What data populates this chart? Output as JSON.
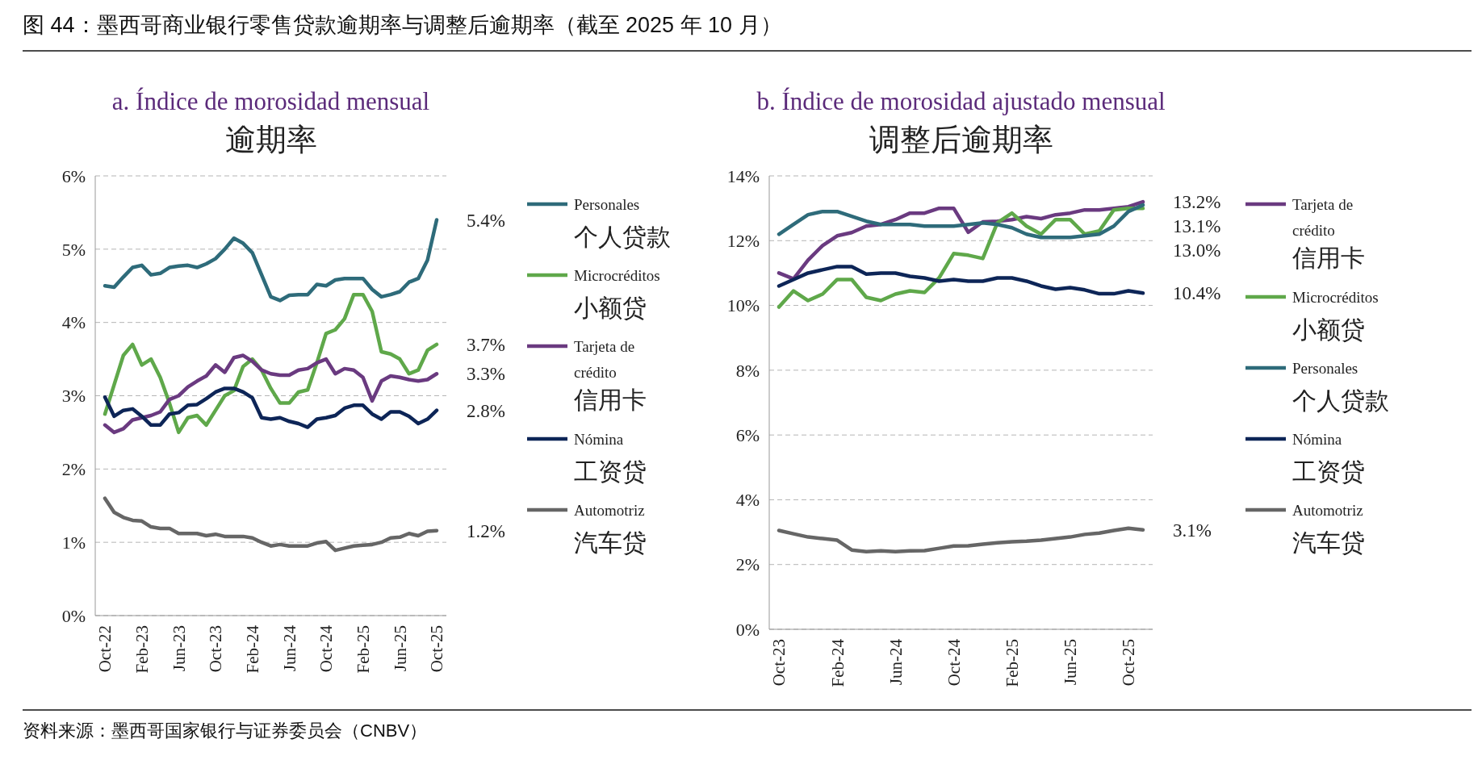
{
  "chart_data": [
    {
      "type": "line",
      "title": "a. Índice de morosidad mensual",
      "subtitle": "逾期率",
      "categories": [
        "Oct-22",
        null,
        null,
        null,
        "Feb-23",
        null,
        null,
        null,
        "Jun-23",
        null,
        null,
        null,
        "Oct-23",
        null,
        null,
        null,
        "Feb-24",
        null,
        null,
        null,
        "Jun-24",
        null,
        null,
        null,
        "Oct-24",
        null,
        null,
        null,
        "Feb-25",
        null,
        null,
        null,
        "Jun-25",
        null,
        null,
        null,
        "Oct-25"
      ],
      "series": [
        {
          "name": "Personales\n个人贷款",
          "color": "#2e6b7a",
          "values": [
            4.5,
            4.48,
            4.62,
            4.75,
            4.78,
            4.65,
            4.67,
            4.75,
            4.77,
            4.78,
            4.75,
            4.8,
            4.87,
            5.0,
            5.15,
            5.08,
            4.95,
            4.65,
            4.35,
            4.3,
            4.37,
            4.38,
            4.38,
            4.52,
            4.5,
            4.58,
            4.6,
            4.6,
            4.6,
            4.45,
            4.35,
            4.38,
            4.42,
            4.55,
            4.6,
            4.85,
            5.4
          ],
          "value_labels": [
            null,
            null,
            null,
            null,
            null,
            null,
            null,
            null,
            null,
            null,
            null,
            null,
            null,
            null,
            null,
            null,
            null,
            null,
            null,
            null,
            null,
            null,
            null,
            null,
            null,
            null,
            null,
            null,
            null,
            null,
            null,
            null,
            null,
            null,
            null,
            null,
            "5.4%"
          ]
        },
        {
          "name": "Microcréditos\n小额贷",
          "color": "#5fa84a",
          "values": [
            2.75,
            3.15,
            3.55,
            3.7,
            3.42,
            3.5,
            3.25,
            2.9,
            2.5,
            2.7,
            2.73,
            2.6,
            2.8,
            3.0,
            3.07,
            3.4,
            3.5,
            3.35,
            3.1,
            2.9,
            2.9,
            3.05,
            3.08,
            3.45,
            3.85,
            3.9,
            4.05,
            4.38,
            4.38,
            4.15,
            3.6,
            3.57,
            3.5,
            3.3,
            3.35,
            3.62,
            3.7
          ],
          "value_labels": [
            null,
            null,
            null,
            null,
            null,
            null,
            null,
            null,
            null,
            null,
            null,
            null,
            null,
            null,
            null,
            null,
            null,
            null,
            null,
            null,
            null,
            null,
            null,
            null,
            null,
            null,
            null,
            null,
            null,
            null,
            null,
            null,
            null,
            null,
            null,
            null,
            "3.7%"
          ]
        },
        {
          "name": "Tarjeta de\ncrédito\n信用卡",
          "color": "#6a3a80",
          "values": [
            2.6,
            2.5,
            2.55,
            2.67,
            2.7,
            2.73,
            2.78,
            2.95,
            3.0,
            3.12,
            3.2,
            3.27,
            3.42,
            3.32,
            3.52,
            3.55,
            3.47,
            3.35,
            3.3,
            3.28,
            3.28,
            3.35,
            3.37,
            3.45,
            3.5,
            3.3,
            3.37,
            3.35,
            3.25,
            2.93,
            3.2,
            3.27,
            3.25,
            3.22,
            3.2,
            3.22,
            3.3
          ],
          "value_labels": [
            null,
            null,
            null,
            null,
            null,
            null,
            null,
            null,
            null,
            null,
            null,
            null,
            null,
            null,
            null,
            null,
            null,
            null,
            null,
            null,
            null,
            null,
            null,
            null,
            null,
            null,
            null,
            null,
            null,
            null,
            null,
            null,
            null,
            null,
            null,
            null,
            "3.3%"
          ]
        },
        {
          "name": "Nómina\n工资贷",
          "color": "#0d2557",
          "values": [
            2.98,
            2.72,
            2.8,
            2.82,
            2.72,
            2.6,
            2.6,
            2.75,
            2.77,
            2.87,
            2.88,
            2.96,
            3.05,
            3.1,
            3.1,
            3.05,
            2.97,
            2.7,
            2.68,
            2.7,
            2.65,
            2.62,
            2.57,
            2.68,
            2.7,
            2.73,
            2.83,
            2.87,
            2.87,
            2.75,
            2.68,
            2.78,
            2.78,
            2.72,
            2.62,
            2.68,
            2.8
          ],
          "value_labels": [
            null,
            null,
            null,
            null,
            null,
            null,
            null,
            null,
            null,
            null,
            null,
            null,
            null,
            null,
            null,
            null,
            null,
            null,
            null,
            null,
            null,
            null,
            null,
            null,
            null,
            null,
            null,
            null,
            null,
            null,
            null,
            null,
            null,
            null,
            null,
            null,
            "2.8%"
          ]
        },
        {
          "name": "Automotriz\n汽车贷",
          "color": "#666666",
          "values": [
            1.6,
            1.41,
            1.34,
            1.3,
            1.29,
            1.21,
            1.19,
            1.19,
            1.12,
            1.12,
            1.12,
            1.09,
            1.11,
            1.08,
            1.08,
            1.08,
            1.06,
            1.0,
            0.95,
            0.97,
            0.95,
            0.95,
            0.95,
            0.99,
            1.01,
            0.89,
            0.92,
            0.95,
            0.96,
            0.97,
            1.0,
            1.06,
            1.07,
            1.12,
            1.09,
            1.15,
            1.16
          ],
          "value_labels": [
            null,
            null,
            null,
            null,
            null,
            null,
            null,
            null,
            null,
            null,
            null,
            null,
            null,
            null,
            null,
            null,
            null,
            null,
            null,
            null,
            null,
            null,
            null,
            null,
            null,
            null,
            null,
            null,
            null,
            null,
            null,
            null,
            null,
            null,
            null,
            null,
            "1.2%"
          ]
        }
      ],
      "ylim": [
        0,
        6
      ],
      "yticks": [
        {
          "value": 0,
          "label": "0%"
        },
        {
          "value": 1,
          "label": "1%"
        },
        {
          "value": 2,
          "label": "2%"
        },
        {
          "value": 3,
          "label": "3%"
        },
        {
          "value": 4,
          "label": "4%"
        },
        {
          "value": 5,
          "label": "5%"
        },
        {
          "value": 6,
          "label": "6%"
        }
      ],
      "grid": "y",
      "legend": "right",
      "line_style": "solid",
      "marker": "none",
      "annotations": [
        "图 44：墨西哥商业银行零售贷款逾期率与调整后逾期率（截至 2025 年 10 月）",
        "资料来源：墨西哥国家银行与证券委员会（CNBV）"
      ]
    },
    {
      "type": "line",
      "title": "b. Índice de morosidad ajustado mensual",
      "subtitle": "调整后逾期率",
      "categories": [
        "Oct-23",
        null,
        null,
        null,
        "Feb-24",
        null,
        null,
        null,
        "Jun-24",
        null,
        null,
        null,
        "Oct-24",
        null,
        null,
        null,
        "Feb-25",
        null,
        null,
        null,
        "Jun-25",
        null,
        null,
        null,
        "Oct-25",
        null
      ],
      "series": [
        {
          "name": "Tarjeta de\ncrédito\n信用卡",
          "color": "#6a3a80",
          "values": [
            11.0,
            10.82,
            11.4,
            11.85,
            12.15,
            12.25,
            12.45,
            12.5,
            12.65,
            12.85,
            12.85,
            13.0,
            13.0,
            12.26,
            12.58,
            12.6,
            12.65,
            12.74,
            12.68,
            12.8,
            12.85,
            12.95,
            12.95,
            13.0,
            13.05,
            13.2
          ],
          "value_labels": [
            null,
            null,
            null,
            null,
            null,
            null,
            null,
            null,
            null,
            null,
            null,
            null,
            null,
            null,
            null,
            null,
            null,
            null,
            null,
            null,
            null,
            null,
            null,
            null,
            null,
            "13.2%"
          ]
        },
        {
          "name": "Microcréditos\n小额贷",
          "color": "#5fa84a",
          "values": [
            9.95,
            10.45,
            10.15,
            10.35,
            10.8,
            10.8,
            10.25,
            10.15,
            10.35,
            10.45,
            10.4,
            10.85,
            11.6,
            11.55,
            11.45,
            12.55,
            12.85,
            12.45,
            12.2,
            12.65,
            12.65,
            12.2,
            12.3,
            12.95,
            13.0,
            13.0
          ],
          "value_labels": [
            null,
            null,
            null,
            null,
            null,
            null,
            null,
            null,
            null,
            null,
            null,
            null,
            null,
            null,
            null,
            null,
            null,
            null,
            null,
            null,
            null,
            null,
            null,
            null,
            null,
            "13.0%"
          ]
        },
        {
          "name": "Personales\n个人贷款",
          "color": "#2e6b7a",
          "values": [
            12.2,
            12.5,
            12.8,
            12.9,
            12.9,
            12.75,
            12.6,
            12.5,
            12.5,
            12.5,
            12.45,
            12.45,
            12.45,
            12.5,
            12.55,
            12.5,
            12.4,
            12.2,
            12.1,
            12.1,
            12.1,
            12.15,
            12.2,
            12.45,
            12.9,
            13.1
          ],
          "value_labels": [
            null,
            null,
            null,
            null,
            null,
            null,
            null,
            null,
            null,
            null,
            null,
            null,
            null,
            null,
            null,
            null,
            null,
            null,
            null,
            null,
            null,
            null,
            null,
            null,
            null,
            "13.1%"
          ]
        },
        {
          "name": "Nómina\n工资贷",
          "color": "#0d2557",
          "values": [
            10.6,
            10.8,
            11.0,
            11.1,
            11.2,
            11.2,
            10.97,
            11.0,
            11.0,
            10.9,
            10.85,
            10.75,
            10.8,
            10.75,
            10.75,
            10.85,
            10.85,
            10.75,
            10.6,
            10.5,
            10.55,
            10.48,
            10.36,
            10.36,
            10.45,
            10.38
          ],
          "value_labels": [
            null,
            null,
            null,
            null,
            null,
            null,
            null,
            null,
            null,
            null,
            null,
            null,
            null,
            null,
            null,
            null,
            null,
            null,
            null,
            null,
            null,
            null,
            null,
            null,
            null,
            "10.4%"
          ]
        },
        {
          "name": "Automotriz\n汽车贷",
          "color": "#666666",
          "values": [
            3.05,
            2.95,
            2.85,
            2.8,
            2.75,
            2.45,
            2.4,
            2.42,
            2.4,
            2.42,
            2.43,
            2.5,
            2.57,
            2.58,
            2.63,
            2.67,
            2.7,
            2.72,
            2.75,
            2.8,
            2.85,
            2.93,
            2.97,
            3.05,
            3.12,
            3.07
          ],
          "value_labels": [
            null,
            null,
            null,
            null,
            null,
            null,
            null,
            null,
            null,
            null,
            null,
            null,
            null,
            null,
            null,
            null,
            null,
            null,
            null,
            null,
            null,
            null,
            null,
            null,
            null,
            "3.1%"
          ]
        }
      ],
      "ylim": [
        0,
        14
      ],
      "yticks": [
        {
          "value": 0,
          "label": "0%"
        },
        {
          "value": 2,
          "label": "2%"
        },
        {
          "value": 4,
          "label": "4%"
        },
        {
          "value": 6,
          "label": "6%"
        },
        {
          "value": 8,
          "label": "8%"
        },
        {
          "value": 10,
          "label": "10%"
        },
        {
          "value": 12,
          "label": "12%"
        },
        {
          "value": 14,
          "label": "14%"
        }
      ],
      "grid": "y",
      "legend": "right",
      "line_style": "solid",
      "marker": "none"
    }
  ]
}
